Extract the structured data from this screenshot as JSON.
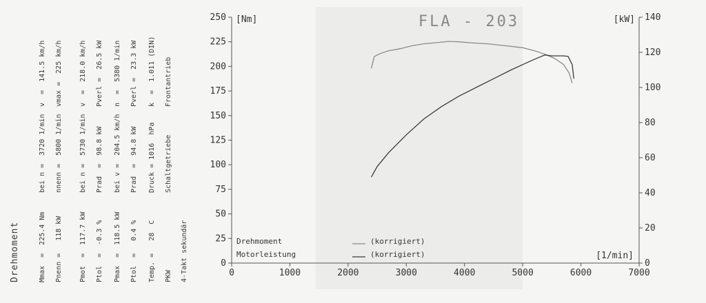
{
  "sidebar": {
    "heading": "Drehmoment",
    "columns": [
      [
        "Mmax  =  225.4 Nm",
        "bei n =  3720 1/min",
        "v  =  141.5 km/h"
      ],
      [
        "Pnenn =   118 kW",
        "nnenn =  5800 1/min",
        "vmax =  225 km/h"
      ],
      [
        "Pmot  =  117.7 kW",
        "bei n =  5730 1/min",
        "v  =  218.0 km/h"
      ],
      [
        "Ptol  =  -0.3 %",
        "Prad  =  98.8 kW",
        "Pverl =  26.5 kW"
      ],
      [
        "Pmax  =  118.5 kW",
        "bei v =  204.5 km/h",
        "n  =  5380 1/min"
      ],
      [
        "Ptol  =   0.4 %",
        "Prad  =  94.8 kW",
        "Pverl =  23.3 kW"
      ],
      [
        "Temp. =   28  C",
        "Druck = 1016  hPa",
        "k  =  1.011 (DIN)"
      ],
      [
        "PKW",
        "Schaltgetriebe",
        "Frontantrieb"
      ],
      [
        "4-Takt sekundär",
        "",
        ""
      ]
    ]
  },
  "chart_data": {
    "type": "line",
    "title": "FLA - 203",
    "left_unit": "[Nm]",
    "right_unit": "[kW]",
    "x_unit": "[1/min]",
    "xlim": [
      0,
      7000
    ],
    "ylim_left": [
      0,
      250
    ],
    "ylim_right": [
      0,
      140
    ],
    "x_ticks": [
      "0",
      "1000",
      "2000",
      "3000",
      "4000",
      "5000",
      "6000",
      "7000"
    ],
    "y_left_ticks": [
      "0",
      "25",
      "50",
      "75",
      "100",
      "125",
      "150",
      "175",
      "200",
      "225",
      "250"
    ],
    "y_right_ticks": [
      "0",
      "20",
      "40",
      "60",
      "80",
      "100",
      "120",
      "140"
    ],
    "series": [
      {
        "name": "Drehmoment",
        "note": "(korrigiert)",
        "axis": "left",
        "color": "#8a8a8a",
        "x": [
          2400,
          2450,
          2550,
          2700,
          2900,
          3100,
          3300,
          3500,
          3720,
          3900,
          4100,
          4400,
          4700,
          5000,
          5200,
          5400,
          5550,
          5700,
          5800,
          5850
        ],
        "y": [
          198,
          210,
          213,
          216,
          218,
          221,
          223,
          224,
          225.4,
          225,
          224,
          223,
          221,
          219,
          216,
          212,
          208,
          202,
          193,
          183
        ]
      },
      {
        "name": "Motorleistung",
        "note": "(korrigiert)",
        "axis": "right",
        "color": "#3a3a3a",
        "x": [
          2400,
          2500,
          2700,
          3000,
          3300,
          3600,
          3900,
          4200,
          4500,
          4800,
          5000,
          5200,
          5380,
          5500,
          5600,
          5700,
          5780,
          5850,
          5880
        ],
        "y": [
          49,
          55,
          63,
          73,
          82,
          89,
          95,
          100,
          105,
          110,
          113,
          116,
          118.5,
          118,
          118,
          118,
          117.7,
          113,
          105
        ]
      }
    ]
  }
}
